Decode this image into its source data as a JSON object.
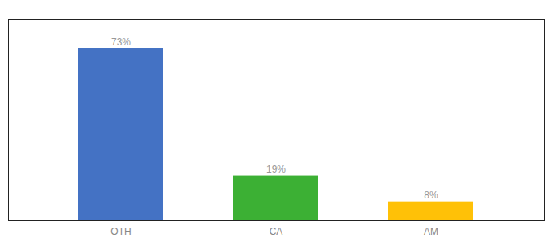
{
  "chart_data": {
    "type": "bar",
    "categories": [
      "OTH",
      "CA",
      "AM"
    ],
    "values": [
      73,
      19,
      8
    ],
    "value_labels": [
      "73%",
      "19%",
      "8%"
    ],
    "colors": [
      "#4472C4",
      "#3CB034",
      "#FFC107"
    ],
    "ylim": [
      0,
      85
    ],
    "grid": false,
    "data_labels": true,
    "tick_labels": "x"
  }
}
